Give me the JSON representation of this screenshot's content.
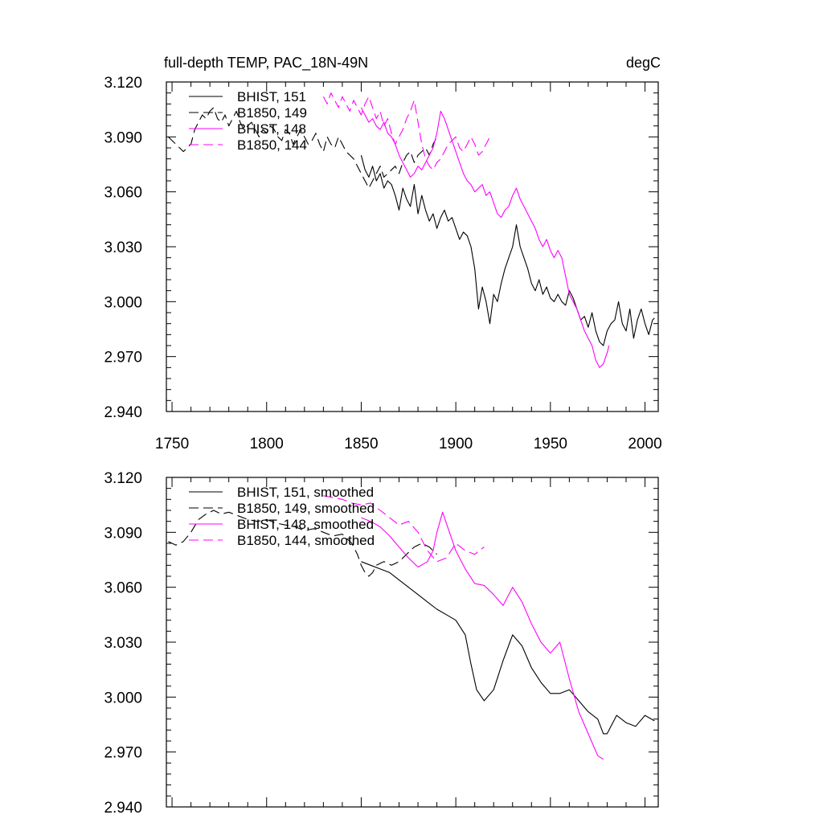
{
  "chart_data": [
    {
      "type": "line",
      "title": "full-depth TEMP, PAC_18N-49N",
      "units": "degC",
      "xlim": [
        1747,
        2007
      ],
      "ylim": [
        2.94,
        3.12
      ],
      "yticks": [
        "3.120",
        "3.090",
        "3.060",
        "3.030",
        "3.000",
        "2.970",
        "2.940"
      ],
      "xticks": [
        "1750",
        "1800",
        "1850",
        "1900",
        "1950",
        "2000"
      ],
      "legend_position": "top-left",
      "series": [
        {
          "name": "BHIST, 151",
          "color": "#000000",
          "dash": "solid",
          "x": [
            1850,
            1852,
            1854,
            1856,
            1858,
            1860,
            1862,
            1864,
            1866,
            1868,
            1870,
            1872,
            1874,
            1876,
            1878,
            1880,
            1882,
            1884,
            1886,
            1888,
            1890,
            1892,
            1894,
            1896,
            1898,
            1900,
            1902,
            1904,
            1906,
            1908,
            1910,
            1912,
            1914,
            1916,
            1918,
            1920,
            1922,
            1924,
            1926,
            1928,
            1930,
            1932,
            1934,
            1936,
            1938,
            1940,
            1942,
            1944,
            1946,
            1948,
            1950,
            1952,
            1954,
            1956,
            1958,
            1960,
            1962,
            1964,
            1966,
            1968,
            1970,
            1972,
            1974,
            1976,
            1978,
            1980,
            1982,
            1984,
            1986,
            1988,
            1990,
            1992,
            1994,
            1996,
            1998,
            2000,
            2002,
            2004,
            2005
          ],
          "y": [
            3.08,
            3.072,
            3.068,
            3.074,
            3.066,
            3.07,
            3.062,
            3.066,
            3.064,
            3.058,
            3.05,
            3.062,
            3.056,
            3.052,
            3.064,
            3.048,
            3.058,
            3.05,
            3.044,
            3.048,
            3.04,
            3.046,
            3.05,
            3.044,
            3.046,
            3.04,
            3.034,
            3.038,
            3.036,
            3.03,
            3.018,
            2.996,
            3.008,
            3.0,
            2.988,
            3.004,
            3.0,
            3.01,
            3.018,
            3.024,
            3.03,
            3.042,
            3.03,
            3.024,
            3.018,
            3.01,
            3.006,
            3.012,
            3.004,
            3.008,
            3.002,
            3.0,
            3.004,
            3.0,
            2.998,
            3.006,
            3.002,
            2.996,
            2.99,
            2.992,
            2.986,
            2.994,
            2.984,
            2.978,
            2.976,
            2.984,
            2.988,
            2.99,
            3.0,
            2.988,
            2.984,
            2.996,
            2.98,
            2.99,
            2.996,
            2.988,
            2.982,
            2.99,
            2.991
          ]
        },
        {
          "name": "B1850, 149",
          "color": "#000000",
          "dash": "dashed",
          "x": [
            1748,
            1750,
            1752,
            1754,
            1756,
            1758,
            1760,
            1762,
            1764,
            1766,
            1768,
            1770,
            1772,
            1774,
            1776,
            1778,
            1780,
            1782,
            1784,
            1786,
            1788,
            1790,
            1792,
            1794,
            1796,
            1798,
            1800,
            1802,
            1804,
            1806,
            1808,
            1810,
            1812,
            1814,
            1816,
            1818,
            1820,
            1822,
            1824,
            1826,
            1828,
            1830,
            1832,
            1834,
            1836,
            1838,
            1840,
            1842,
            1844,
            1846,
            1848,
            1850,
            1852,
            1854,
            1856,
            1858,
            1860,
            1862,
            1864,
            1866,
            1868,
            1870,
            1872,
            1874,
            1876,
            1878,
            1880,
            1882,
            1884,
            1886,
            1888,
            1890
          ],
          "y": [
            3.09,
            3.088,
            3.086,
            3.084,
            3.082,
            3.084,
            3.086,
            3.094,
            3.098,
            3.102,
            3.1,
            3.104,
            3.106,
            3.1,
            3.098,
            3.102,
            3.096,
            3.1,
            3.104,
            3.098,
            3.094,
            3.096,
            3.098,
            3.094,
            3.09,
            3.094,
            3.092,
            3.096,
            3.094,
            3.09,
            3.088,
            3.094,
            3.092,
            3.086,
            3.09,
            3.094,
            3.09,
            3.086,
            3.088,
            3.092,
            3.086,
            3.082,
            3.09,
            3.086,
            3.084,
            3.09,
            3.086,
            3.082,
            3.08,
            3.078,
            3.074,
            3.07,
            3.066,
            3.062,
            3.066,
            3.07,
            3.074,
            3.068,
            3.07,
            3.072,
            3.074,
            3.07,
            3.076,
            3.08,
            3.082,
            3.076,
            3.08,
            3.082,
            3.084,
            3.08,
            3.086,
            3.09
          ]
        },
        {
          "name": "BHIST, 148",
          "color": "#ff00ff",
          "dash": "solid",
          "x": [
            1850,
            1852,
            1854,
            1856,
            1858,
            1860,
            1862,
            1864,
            1866,
            1868,
            1870,
            1872,
            1874,
            1876,
            1878,
            1880,
            1882,
            1884,
            1886,
            1888,
            1890,
            1892,
            1894,
            1896,
            1898,
            1900,
            1902,
            1904,
            1906,
            1908,
            1910,
            1912,
            1914,
            1916,
            1918,
            1920,
            1922,
            1924,
            1926,
            1928,
            1930,
            1932,
            1934,
            1936,
            1938,
            1940,
            1942,
            1944,
            1946,
            1948,
            1950,
            1952,
            1954,
            1956,
            1958,
            1960,
            1962,
            1964,
            1966,
            1968,
            1970,
            1972,
            1974,
            1976,
            1978,
            1980,
            1981
          ],
          "y": [
            3.106,
            3.102,
            3.098,
            3.1,
            3.096,
            3.094,
            3.098,
            3.092,
            3.09,
            3.086,
            3.08,
            3.076,
            3.072,
            3.068,
            3.07,
            3.074,
            3.072,
            3.076,
            3.08,
            3.084,
            3.092,
            3.104,
            3.1,
            3.094,
            3.088,
            3.082,
            3.076,
            3.07,
            3.066,
            3.064,
            3.06,
            3.062,
            3.064,
            3.058,
            3.06,
            3.054,
            3.048,
            3.046,
            3.05,
            3.052,
            3.058,
            3.062,
            3.056,
            3.052,
            3.048,
            3.044,
            3.04,
            3.034,
            3.03,
            3.034,
            3.028,
            3.024,
            3.028,
            3.024,
            3.014,
            3.004,
            3.0,
            2.996,
            2.99,
            2.984,
            2.98,
            2.976,
            2.968,
            2.964,
            2.966,
            2.972,
            2.976
          ]
        },
        {
          "name": "B1850, 144",
          "color": "#ff00ff",
          "dash": "dashed",
          "x": [
            1830,
            1832,
            1834,
            1836,
            1838,
            1840,
            1842,
            1844,
            1846,
            1848,
            1850,
            1852,
            1854,
            1856,
            1858,
            1860,
            1862,
            1864,
            1866,
            1868,
            1870,
            1872,
            1874,
            1876,
            1878,
            1880,
            1882,
            1884,
            1886,
            1888,
            1890,
            1892,
            1894,
            1896,
            1898,
            1900,
            1902,
            1904,
            1906,
            1908,
            1910,
            1912,
            1914,
            1916,
            1918
          ],
          "y": [
            3.112,
            3.108,
            3.114,
            3.11,
            3.106,
            3.112,
            3.108,
            3.104,
            3.11,
            3.106,
            3.102,
            3.108,
            3.112,
            3.106,
            3.1,
            3.104,
            3.096,
            3.1,
            3.092,
            3.086,
            3.09,
            3.094,
            3.1,
            3.104,
            3.11,
            3.098,
            3.086,
            3.078,
            3.074,
            3.072,
            3.076,
            3.078,
            3.082,
            3.086,
            3.088,
            3.09,
            3.084,
            3.082,
            3.086,
            3.09,
            3.086,
            3.08,
            3.082,
            3.086,
            3.09
          ]
        }
      ]
    },
    {
      "type": "line",
      "title": "",
      "units": "",
      "xlim": [
        1747,
        2007
      ],
      "ylim": [
        2.94,
        3.12
      ],
      "yticks": [
        "3.120",
        "3.090",
        "3.060",
        "3.030",
        "3.000",
        "2.970",
        "2.940"
      ],
      "xticks": [],
      "legend_position": "top-left",
      "series": [
        {
          "name": "BHIST, 151, smoothed",
          "color": "#000000",
          "dash": "solid",
          "x": [
            1850,
            1855,
            1860,
            1865,
            1870,
            1875,
            1880,
            1885,
            1890,
            1895,
            1900,
            1905,
            1908,
            1911,
            1915,
            1920,
            1925,
            1930,
            1935,
            1940,
            1945,
            1950,
            1955,
            1960,
            1965,
            1970,
            1975,
            1978,
            1980,
            1985,
            1990,
            1995,
            2000,
            2005
          ],
          "y": [
            3.074,
            3.072,
            3.07,
            3.068,
            3.064,
            3.06,
            3.056,
            3.052,
            3.048,
            3.045,
            3.042,
            3.034,
            3.018,
            3.004,
            2.998,
            3.004,
            3.02,
            3.034,
            3.028,
            3.016,
            3.008,
            3.002,
            3.002,
            3.004,
            2.998,
            2.992,
            2.988,
            2.98,
            2.98,
            2.99,
            2.986,
            2.984,
            2.99,
            2.987
          ]
        },
        {
          "name": "B1850, 149, smoothed",
          "color": "#000000",
          "dash": "dashed",
          "x": [
            1748,
            1752,
            1756,
            1760,
            1764,
            1768,
            1772,
            1776,
            1780,
            1785,
            1790,
            1795,
            1800,
            1805,
            1810,
            1815,
            1820,
            1825,
            1830,
            1835,
            1840,
            1845,
            1848,
            1850,
            1852,
            1854,
            1856,
            1858,
            1862,
            1866,
            1870,
            1874,
            1878,
            1882,
            1886,
            1890
          ],
          "y": [
            3.085,
            3.083,
            3.085,
            3.09,
            3.097,
            3.1,
            3.102,
            3.1,
            3.101,
            3.099,
            3.097,
            3.096,
            3.097,
            3.095,
            3.094,
            3.093,
            3.091,
            3.092,
            3.09,
            3.088,
            3.089,
            3.084,
            3.078,
            3.072,
            3.068,
            3.066,
            3.068,
            3.072,
            3.074,
            3.072,
            3.074,
            3.078,
            3.082,
            3.084,
            3.082,
            3.078
          ]
        },
        {
          "name": "BHIST, 148, smoothed",
          "color": "#ff00ff",
          "dash": "solid",
          "x": [
            1850,
            1855,
            1860,
            1865,
            1870,
            1875,
            1880,
            1885,
            1888,
            1890,
            1893,
            1896,
            1900,
            1905,
            1910,
            1915,
            1920,
            1925,
            1930,
            1935,
            1940,
            1945,
            1950,
            1955,
            1960,
            1965,
            1970,
            1975,
            1978
          ],
          "y": [
            3.098,
            3.096,
            3.093,
            3.088,
            3.082,
            3.076,
            3.071,
            3.074,
            3.08,
            3.09,
            3.101,
            3.092,
            3.08,
            3.07,
            3.062,
            3.061,
            3.056,
            3.05,
            3.06,
            3.052,
            3.04,
            3.03,
            3.024,
            3.03,
            3.01,
            2.992,
            2.98,
            2.968,
            2.966
          ]
        },
        {
          "name": "B1850, 144, smoothed",
          "color": "#ff00ff",
          "dash": "dashed",
          "x": [
            1830,
            1835,
            1840,
            1845,
            1850,
            1855,
            1860,
            1865,
            1870,
            1875,
            1880,
            1885,
            1890,
            1895,
            1900,
            1905,
            1910,
            1915
          ],
          "y": [
            3.11,
            3.109,
            3.108,
            3.106,
            3.105,
            3.106,
            3.102,
            3.098,
            3.094,
            3.096,
            3.09,
            3.08,
            3.074,
            3.076,
            3.084,
            3.08,
            3.078,
            3.082
          ]
        }
      ]
    }
  ]
}
